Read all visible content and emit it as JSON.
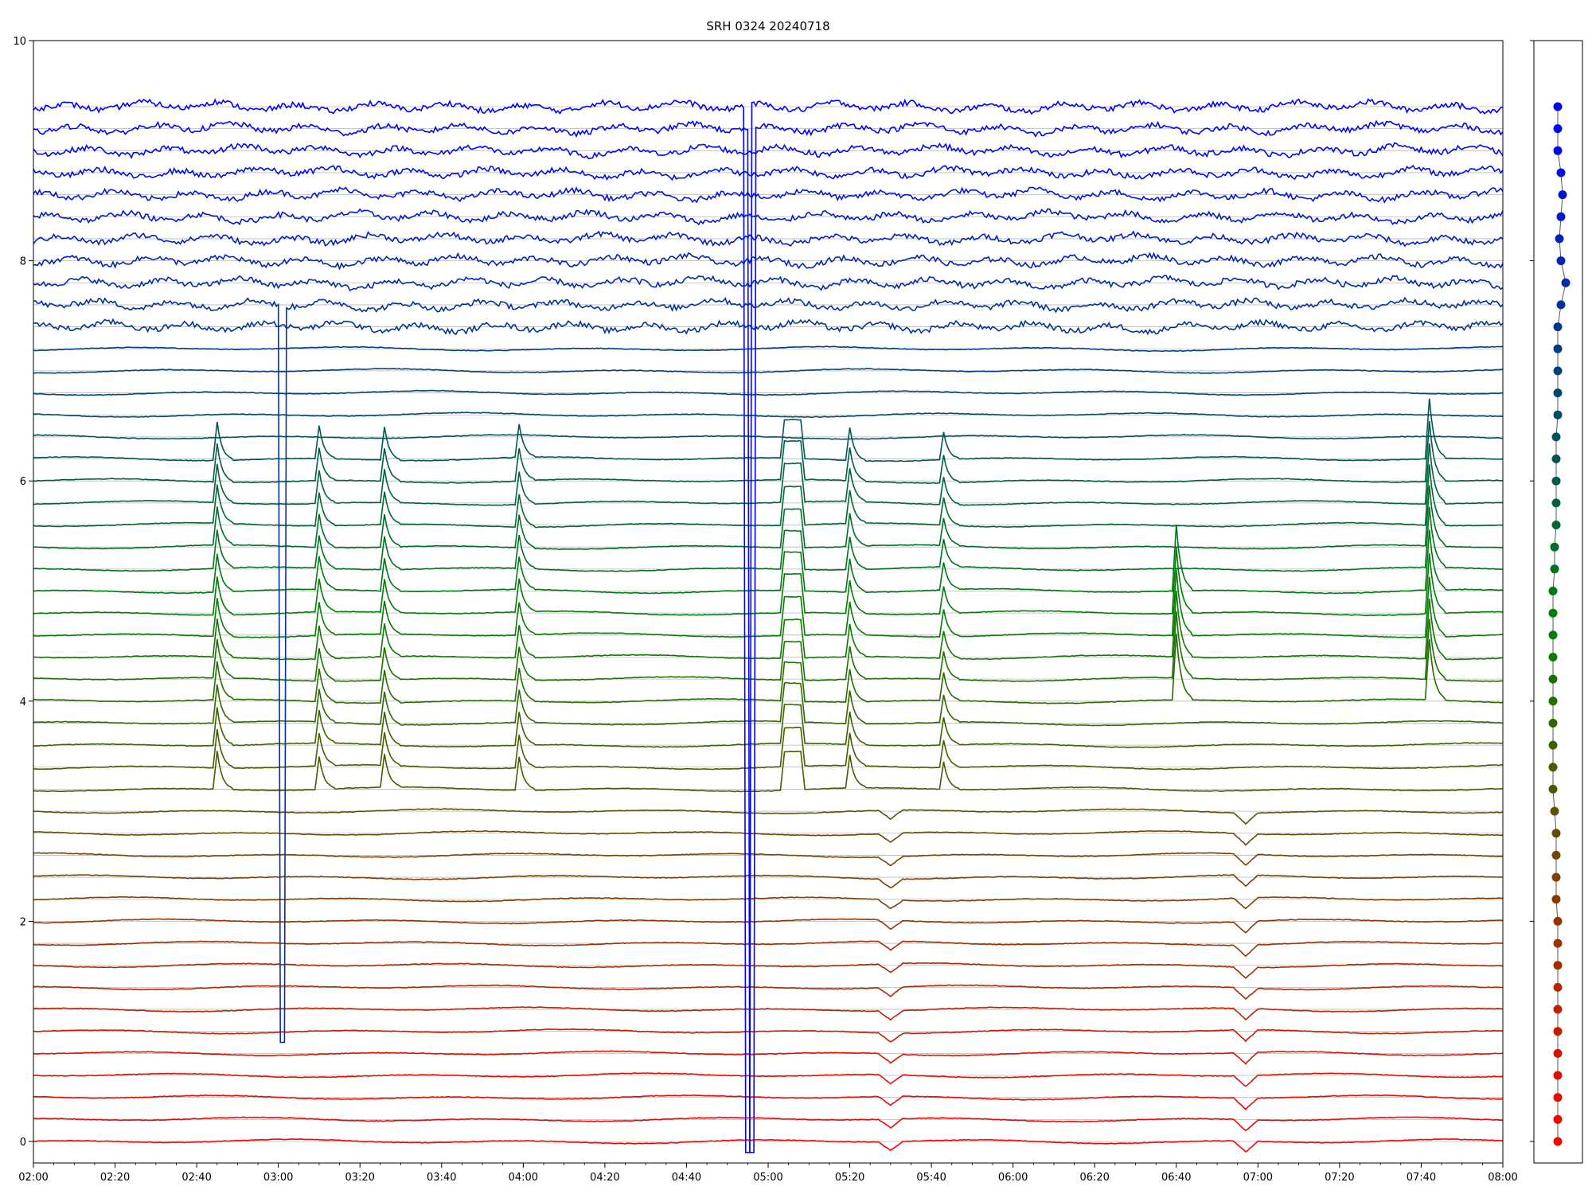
{
  "chart_data": [
    {
      "type": "line",
      "title": "SRH 0324 20240718",
      "xlabel": "",
      "ylabel": "",
      "x_ticks": [
        "02:00",
        "02:20",
        "02:40",
        "03:00",
        "03:20",
        "03:40",
        "04:00",
        "04:20",
        "04:40",
        "05:00",
        "05:20",
        "05:40",
        "06:00",
        "06:20",
        "06:40",
        "07:00",
        "07:20",
        "07:40",
        "08:00"
      ],
      "x_range_minutes": [
        120,
        480
      ],
      "y_ticks": [
        "0",
        "2",
        "4",
        "6",
        "8",
        "10"
      ],
      "ylim": [
        0,
        10
      ],
      "grid": "horizontal lines at each trace baseline",
      "legend": "none",
      "series_count": 48,
      "baseline_spacing": 0.2,
      "color_gradient": [
        "#ff0000",
        "#008000",
        "#0000ff"
      ],
      "events": [
        {
          "time": "02:45",
          "type": "spike-up",
          "from_series": 16,
          "to_series": 31,
          "amp": 0.35
        },
        {
          "time": "03:10",
          "type": "spike-up",
          "from_series": 16,
          "to_series": 31,
          "amp": 0.3
        },
        {
          "time": "03:26",
          "type": "spike-up",
          "from_series": 16,
          "to_series": 31,
          "amp": 0.3
        },
        {
          "time": "03:59",
          "type": "spike-up",
          "from_series": 16,
          "to_series": 31,
          "amp": 0.3
        },
        {
          "time": "05:03",
          "type": "plateau",
          "from_series": 16,
          "to_series": 31,
          "amp": 0.35
        },
        {
          "time": "05:20",
          "type": "spike-up",
          "from_series": 16,
          "to_series": 31,
          "amp": 0.3
        },
        {
          "time": "05:43",
          "type": "spike-up",
          "from_series": 16,
          "to_series": 31,
          "amp": 0.25
        },
        {
          "time": "06:40",
          "type": "spike-up",
          "from_series": 20,
          "to_series": 25,
          "amp": 0.6
        },
        {
          "time": "07:42",
          "type": "spike-up",
          "from_series": 20,
          "to_series": 31,
          "amp": 0.55
        },
        {
          "time": "05:30",
          "type": "dip",
          "from_series": 0,
          "to_series": 15,
          "amp": 0.08
        },
        {
          "time": "06:57",
          "type": "dip",
          "from_series": 0,
          "to_series": 15,
          "amp": 0.1
        },
        {
          "time": "03:01",
          "type": "drop",
          "series": 38,
          "to": 0.9
        },
        {
          "time": "04:55",
          "type": "drop",
          "series": 47,
          "to": -0.1
        },
        {
          "time": "04:56",
          "type": "drop",
          "series": 46,
          "to": -0.1
        }
      ],
      "noisy_series_from": 37
    },
    {
      "type": "scatter",
      "title": "",
      "ylim": [
        0,
        10
      ],
      "points_y_start": 0,
      "points_y_step": 0.2,
      "count": 48,
      "x_offsets": [
        0,
        0,
        0,
        0,
        0,
        0,
        0,
        0,
        0,
        0,
        0,
        -0.05,
        -0.05,
        -0.05,
        -0.05,
        -0.1,
        -0.15,
        -0.15,
        -0.15,
        -0.15,
        -0.15,
        -0.15,
        -0.15,
        -0.15,
        -0.15,
        -0.15,
        -0.1,
        -0.1,
        -0.05,
        -0.05,
        -0.05,
        -0.05,
        -0.05,
        0,
        0,
        0,
        0,
        0,
        0.1,
        0.25,
        0.1,
        0.05,
        0.1,
        0.15,
        0.1,
        0,
        0,
        0
      ]
    }
  ]
}
